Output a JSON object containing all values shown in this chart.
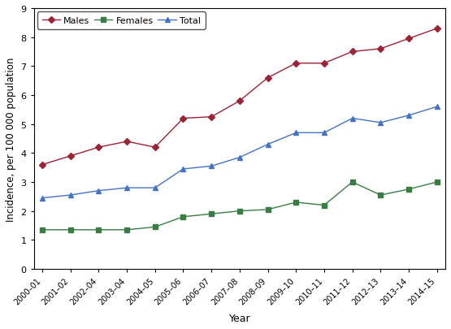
{
  "years": [
    "2000–01",
    "2001–02",
    "2002–04",
    "2003–04",
    "2004–05",
    "2005–06",
    "2006–07",
    "2007–08",
    "2008–09",
    "2009–10",
    "2010–11",
    "2011–12",
    "2012–13",
    "2013–14",
    "2014–15"
  ],
  "males": [
    3.6,
    3.9,
    4.2,
    4.4,
    4.2,
    5.2,
    5.25,
    5.8,
    6.6,
    7.1,
    7.1,
    7.5,
    7.6,
    7.95,
    8.3
  ],
  "females": [
    1.35,
    1.35,
    1.35,
    1.35,
    1.45,
    1.8,
    1.9,
    2.0,
    2.05,
    2.3,
    2.2,
    3.0,
    2.55,
    2.75,
    3.0
  ],
  "total": [
    2.45,
    2.55,
    2.7,
    2.8,
    2.8,
    3.45,
    3.55,
    3.85,
    4.3,
    4.7,
    4.7,
    5.2,
    5.05,
    5.3,
    5.6
  ],
  "males_color": "#9B2335",
  "females_color": "#3A7D44",
  "total_color": "#4472C4",
  "ylabel": "Incidence, per 100 000 population",
  "xlabel": "Year",
  "ylim": [
    0,
    9
  ],
  "yticks": [
    0,
    1,
    2,
    3,
    4,
    5,
    6,
    7,
    8,
    9
  ]
}
